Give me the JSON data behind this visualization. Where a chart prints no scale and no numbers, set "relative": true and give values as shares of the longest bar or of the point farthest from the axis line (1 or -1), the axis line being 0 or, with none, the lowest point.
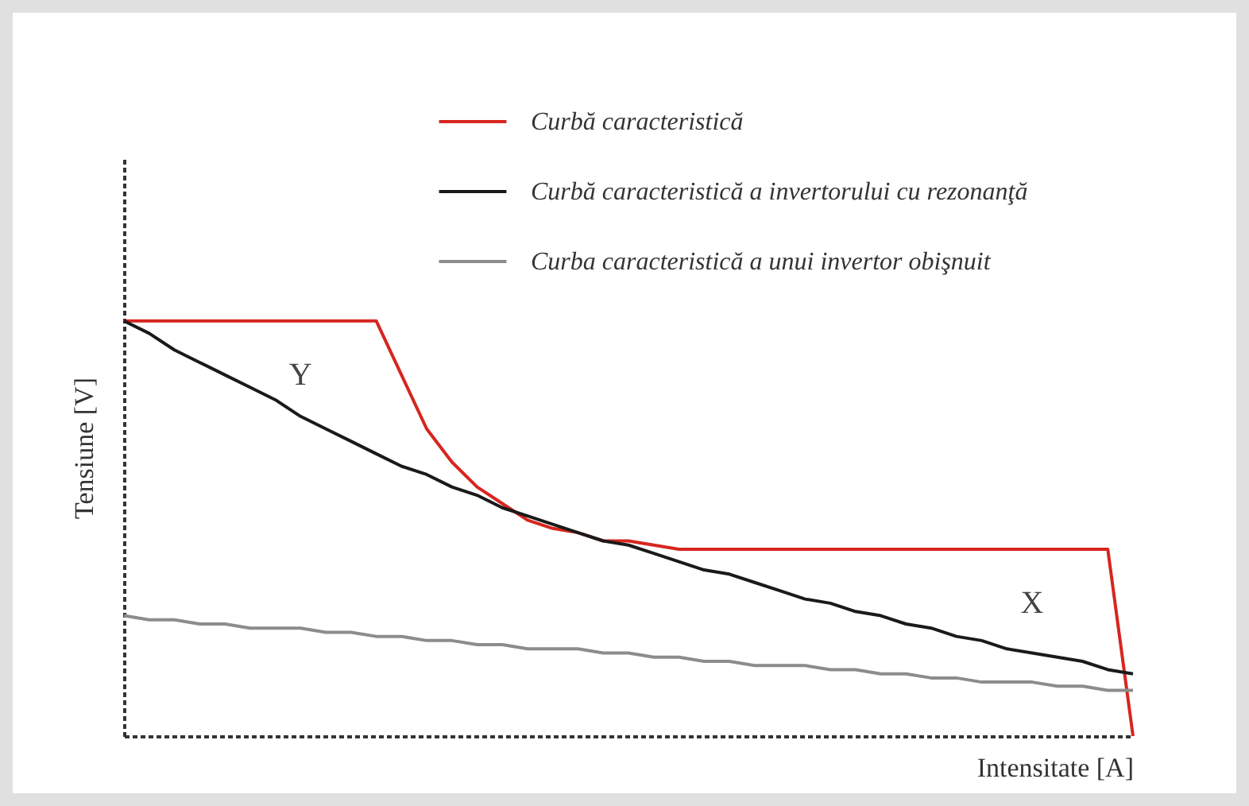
{
  "chart_data": {
    "type": "line",
    "relative": true,
    "xlabel": "Intensitate [A]",
    "ylabel": "Tensiune [V]",
    "legend": "top right",
    "grid": false,
    "marker": "none",
    "line_style": "solid",
    "annotations": [
      "Y",
      "X"
    ],
    "categories": [
      null,
      null,
      null,
      null,
      null,
      null,
      null,
      null,
      null,
      null,
      null,
      null,
      null,
      null,
      null,
      null,
      null,
      null,
      null,
      null,
      null,
      null,
      null,
      null,
      null,
      null,
      null,
      null,
      null,
      null,
      null,
      null,
      null,
      null,
      null,
      null,
      null,
      null,
      null,
      null,
      null
    ],
    "series": [
      {
        "name": "Curbă caracteristică",
        "color": "#d7251f",
        "values": [
          1,
          1,
          1,
          1,
          1,
          1,
          1,
          1,
          1,
          1,
          1,
          0.87,
          0.74,
          0.66,
          0.6,
          0.56,
          0.52,
          0.5,
          0.49,
          0.47,
          0.47,
          0.46,
          0.45,
          0.45,
          0.45,
          0.45,
          0.45,
          0.45,
          0.45,
          0.45,
          0.45,
          0.45,
          0.45,
          0.45,
          0.45,
          0.45,
          0.45,
          0.45,
          0.45,
          0.45,
          0
        ]
      },
      {
        "name": "Curbă caracteristică a invertorului cu rezonanţă",
        "color": "#1a1a1a",
        "values": [
          1,
          0.97,
          0.93,
          0.9,
          0.87,
          0.84,
          0.81,
          0.77,
          0.74,
          0.71,
          0.68,
          0.65,
          0.63,
          0.6,
          0.58,
          0.55,
          0.53,
          0.51,
          0.49,
          0.47,
          0.46,
          0.44,
          0.42,
          0.4,
          0.39,
          0.37,
          0.35,
          0.33,
          0.32,
          0.3,
          0.29,
          0.27,
          0.26,
          0.24,
          0.23,
          0.21,
          0.2,
          0.19,
          0.18,
          0.16,
          0.15
        ]
      },
      {
        "name": "Curba caracteristică a unui invertor obişnuit",
        "color": "#8c8c8c",
        "values": [
          0.29,
          0.28,
          0.28,
          0.27,
          0.27,
          0.26,
          0.26,
          0.26,
          0.25,
          0.25,
          0.24,
          0.24,
          0.23,
          0.23,
          0.22,
          0.22,
          0.21,
          0.21,
          0.21,
          0.2,
          0.2,
          0.19,
          0.19,
          0.18,
          0.18,
          0.17,
          0.17,
          0.17,
          0.16,
          0.16,
          0.15,
          0.15,
          0.14,
          0.14,
          0.13,
          0.13,
          0.13,
          0.12,
          0.12,
          0.11,
          0.11
        ]
      }
    ]
  }
}
